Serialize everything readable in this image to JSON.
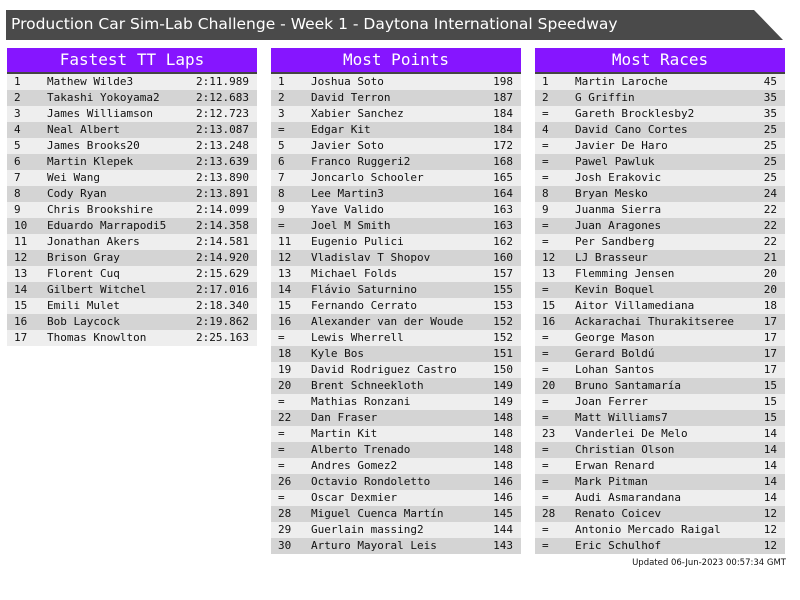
{
  "title": "Production Car Sim-Lab Challenge - Week 1 - Daytona International Speedway",
  "colors": {
    "header_bg": "#8615ff",
    "title_bg": "#4a4a4a",
    "row_light": "#eeeeee",
    "row_dark": "#d4d4d4"
  },
  "panels": [
    {
      "title": "Fastest TT Laps",
      "rows": [
        [
          "1",
          "Mathew Wilde3",
          "2:11.989"
        ],
        [
          "2",
          "Takashi Yokoyama2",
          "2:12.683"
        ],
        [
          "3",
          "James Williamson",
          "2:12.723"
        ],
        [
          "4",
          "Neal Albert",
          "2:13.087"
        ],
        [
          "5",
          "James Brooks20",
          "2:13.248"
        ],
        [
          "6",
          "Martin Klepek",
          "2:13.639"
        ],
        [
          "7",
          "Wei Wang",
          "2:13.890"
        ],
        [
          "8",
          "Cody Ryan",
          "2:13.891"
        ],
        [
          "9",
          "Chris Brookshire",
          "2:14.099"
        ],
        [
          "10",
          "Eduardo Marrapodi5",
          "2:14.358"
        ],
        [
          "11",
          "Jonathan Akers",
          "2:14.581"
        ],
        [
          "12",
          "Brison Gray",
          "2:14.920"
        ],
        [
          "13",
          "Florent Cuq",
          "2:15.629"
        ],
        [
          "14",
          "Gilbert Witchel",
          "2:17.016"
        ],
        [
          "15",
          "Emili Mulet",
          "2:18.340"
        ],
        [
          "16",
          "Bob Laycock",
          "2:19.862"
        ],
        [
          "17",
          "Thomas Knowlton",
          "2:25.163"
        ]
      ]
    },
    {
      "title": "Most Points",
      "rows": [
        [
          "1",
          "Joshua Soto",
          "198"
        ],
        [
          "2",
          "David Terron",
          "187"
        ],
        [
          "3",
          "Xabier Sanchez",
          "184"
        ],
        [
          "=",
          "Edgar Kit",
          "184"
        ],
        [
          "5",
          "Javier Soto",
          "172"
        ],
        [
          "6",
          "Franco Ruggeri2",
          "168"
        ],
        [
          "7",
          "Joncarlo Schooler",
          "165"
        ],
        [
          "8",
          "Lee Martin3",
          "164"
        ],
        [
          "9",
          "Yave Valido",
          "163"
        ],
        [
          "=",
          "Joel M Smith",
          "163"
        ],
        [
          "11",
          "Eugenio Pulici",
          "162"
        ],
        [
          "12",
          "Vladislav T Shopov",
          "160"
        ],
        [
          "13",
          "Michael Folds",
          "157"
        ],
        [
          "14",
          "Flávio Saturnino",
          "155"
        ],
        [
          "15",
          "Fernando Cerrato",
          "153"
        ],
        [
          "16",
          "Alexander van der Woude",
          "152"
        ],
        [
          "=",
          "Lewis Wherrell",
          "152"
        ],
        [
          "18",
          "Kyle Bos",
          "151"
        ],
        [
          "19",
          "David Rodriguez Castro",
          "150"
        ],
        [
          "20",
          "Brent Schneekloth",
          "149"
        ],
        [
          "=",
          "Mathias Ronzani",
          "149"
        ],
        [
          "22",
          "Dan Fraser",
          "148"
        ],
        [
          "=",
          "Martin Kit",
          "148"
        ],
        [
          "=",
          "Alberto Trenado",
          "148"
        ],
        [
          "=",
          "Andres Gomez2",
          "148"
        ],
        [
          "26",
          "Octavio Rondoletto",
          "146"
        ],
        [
          "=",
          "Oscar Dexmier",
          "146"
        ],
        [
          "28",
          "Miguel Cuenca Martín",
          "145"
        ],
        [
          "29",
          "Guerlain massing2",
          "144"
        ],
        [
          "30",
          "Arturo Mayoral Leis",
          "143"
        ]
      ]
    },
    {
      "title": "Most Races",
      "rows": [
        [
          "1",
          "Martin Laroche",
          "45"
        ],
        [
          "2",
          "G Griffin",
          "35"
        ],
        [
          "=",
          "Gareth Brocklesby2",
          "35"
        ],
        [
          "4",
          "David Cano Cortes",
          "25"
        ],
        [
          "=",
          "Javier De Haro",
          "25"
        ],
        [
          "=",
          "Pawel Pawluk",
          "25"
        ],
        [
          "=",
          "Josh Erakovic",
          "25"
        ],
        [
          "8",
          "Bryan Mesko",
          "24"
        ],
        [
          "9",
          "Juanma Sierra",
          "22"
        ],
        [
          "=",
          "Juan Aragones",
          "22"
        ],
        [
          "=",
          "Per Sandberg",
          "22"
        ],
        [
          "12",
          "LJ Brasseur",
          "21"
        ],
        [
          "13",
          "Flemming Jensen",
          "20"
        ],
        [
          "=",
          "Kevin Boquel",
          "20"
        ],
        [
          "15",
          "Aitor Villamediana",
          "18"
        ],
        [
          "16",
          "Ackarachai Thurakitseree",
          "17"
        ],
        [
          "=",
          "George Mason",
          "17"
        ],
        [
          "=",
          "Gerard Boldú",
          "17"
        ],
        [
          "=",
          "Lohan Santos",
          "17"
        ],
        [
          "20",
          "Bruno Santamaría",
          "15"
        ],
        [
          "=",
          "Joan Ferrer",
          "15"
        ],
        [
          "=",
          "Matt Williams7",
          "15"
        ],
        [
          "23",
          "Vanderlei De Melo",
          "14"
        ],
        [
          "=",
          "Christian Olson",
          "14"
        ],
        [
          "=",
          "Erwan Renard",
          "14"
        ],
        [
          "=",
          "Mark Pitman",
          "14"
        ],
        [
          "=",
          "Audi Asmarandana",
          "14"
        ],
        [
          "28",
          "Renato Coicev",
          "12"
        ],
        [
          "=",
          "Antonio Mercado Raigal",
          "12"
        ],
        [
          "=",
          "Eric Schulhof",
          "12"
        ]
      ]
    }
  ],
  "updated": "Updated 06-Jun-2023 00:57:34 GMT"
}
